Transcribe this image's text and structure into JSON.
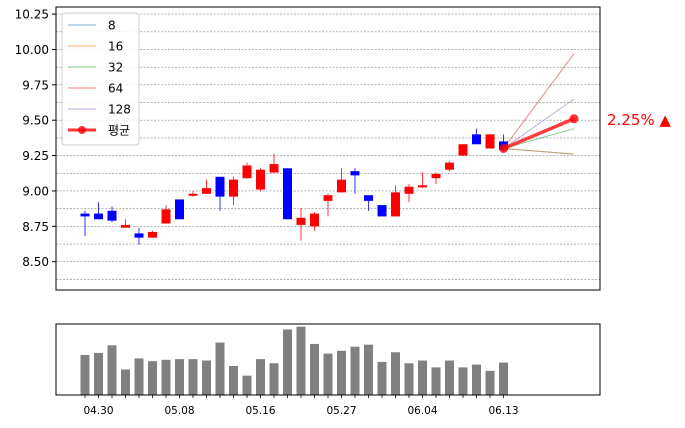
{
  "chart_data": [
    {
      "type": "candlestick",
      "ylim": [
        8.3,
        10.3
      ],
      "yticks": [
        "8.50",
        "8.75",
        "9.00",
        "9.25",
        "9.50",
        "9.75",
        "10.00",
        "10.25"
      ],
      "ytick_values": [
        8.5,
        8.75,
        9.0,
        9.25,
        9.5,
        9.75,
        10.0,
        10.25
      ],
      "grid": true,
      "legend_position": "top-left",
      "colors": {
        "up": "#ff0000",
        "down": "#0000ff"
      },
      "candles": [
        {
          "o": 8.84,
          "h": 8.86,
          "l": 8.68,
          "c": 8.82
        },
        {
          "o": 8.84,
          "h": 8.92,
          "l": 8.8,
          "c": 8.8
        },
        {
          "o": 8.86,
          "h": 8.89,
          "l": 8.78,
          "c": 8.79
        },
        {
          "o": 8.74,
          "h": 8.8,
          "l": 8.74,
          "c": 8.76
        },
        {
          "o": 8.7,
          "h": 8.74,
          "l": 8.62,
          "c": 8.67
        },
        {
          "o": 8.67,
          "h": 8.72,
          "l": 8.67,
          "c": 8.71
        },
        {
          "o": 8.77,
          "h": 8.9,
          "l": 8.77,
          "c": 8.87
        },
        {
          "o": 8.94,
          "h": 8.94,
          "l": 8.8,
          "c": 8.8
        },
        {
          "o": 8.97,
          "h": 9.0,
          "l": 8.96,
          "c": 8.98
        },
        {
          "o": 8.98,
          "h": 9.08,
          "l": 8.98,
          "c": 9.02
        },
        {
          "o": 9.1,
          "h": 9.1,
          "l": 8.86,
          "c": 8.96
        },
        {
          "o": 8.96,
          "h": 9.1,
          "l": 8.9,
          "c": 9.08
        },
        {
          "o": 9.09,
          "h": 9.2,
          "l": 9.09,
          "c": 9.18
        },
        {
          "o": 9.01,
          "h": 9.16,
          "l": 9.0,
          "c": 9.15
        },
        {
          "o": 9.13,
          "h": 9.26,
          "l": 9.13,
          "c": 9.19
        },
        {
          "o": 9.16,
          "h": 9.16,
          "l": 8.8,
          "c": 8.8
        },
        {
          "o": 8.76,
          "h": 8.88,
          "l": 8.65,
          "c": 8.81
        },
        {
          "o": 8.75,
          "h": 8.85,
          "l": 8.72,
          "c": 8.84
        },
        {
          "o": 8.93,
          "h": 8.98,
          "l": 8.82,
          "c": 8.97
        },
        {
          "o": 8.99,
          "h": 9.16,
          "l": 8.99,
          "c": 9.08
        },
        {
          "o": 9.14,
          "h": 9.16,
          "l": 8.98,
          "c": 9.11
        },
        {
          "o": 8.97,
          "h": 8.97,
          "l": 8.86,
          "c": 8.93
        },
        {
          "o": 8.9,
          "h": 8.9,
          "l": 8.82,
          "c": 8.82
        },
        {
          "o": 8.82,
          "h": 9.04,
          "l": 8.82,
          "c": 8.99
        },
        {
          "o": 8.98,
          "h": 9.05,
          "l": 8.92,
          "c": 9.03
        },
        {
          "o": 9.03,
          "h": 9.13,
          "l": 9.02,
          "c": 9.04
        },
        {
          "o": 9.09,
          "h": 9.13,
          "l": 9.05,
          "c": 9.12
        },
        {
          "o": 9.15,
          "h": 9.21,
          "l": 9.14,
          "c": 9.2
        },
        {
          "o": 9.25,
          "h": 9.33,
          "l": 9.25,
          "c": 9.33
        },
        {
          "o": 9.4,
          "h": 9.44,
          "l": 9.33,
          "c": 9.33
        },
        {
          "o": 9.3,
          "h": 9.4,
          "l": 9.3,
          "c": 9.4
        },
        {
          "o": 9.35,
          "h": 9.4,
          "l": 9.28,
          "c": 9.29
        }
      ],
      "volume": [
        0.58,
        0.61,
        0.72,
        0.37,
        0.53,
        0.49,
        0.51,
        0.52,
        0.52,
        0.5,
        0.76,
        0.42,
        0.28,
        0.52,
        0.46,
        0.95,
        0.99,
        0.74,
        0.6,
        0.64,
        0.7,
        0.73,
        0.48,
        0.62,
        0.46,
        0.5,
        0.4,
        0.5,
        0.4,
        0.44,
        0.35,
        0.47
      ],
      "projection": {
        "start": 9.3,
        "series": [
          {
            "name": "8",
            "color": "#1f77b4",
            "end": 9.26
          },
          {
            "name": "16",
            "color": "#ff7f0e",
            "end": 9.26
          },
          {
            "name": "32",
            "color": "#2ca02c",
            "end": 9.44
          },
          {
            "name": "64",
            "color": "#d62728",
            "end": 9.97
          },
          {
            "name": "128",
            "color": "#9467bd",
            "end": 9.65
          }
        ],
        "mean": {
          "name": "평균",
          "color": "#ff0000",
          "end": 9.51
        }
      },
      "change_label": "2.25% ▲",
      "xticks": [
        {
          "index": 1,
          "label": "04.30"
        },
        {
          "index": 7,
          "label": "05.08"
        },
        {
          "index": 13,
          "label": "05.16"
        },
        {
          "index": 19,
          "label": "05.27"
        },
        {
          "index": 25,
          "label": "06.04"
        },
        {
          "index": 31,
          "label": "06.13"
        }
      ]
    }
  ]
}
